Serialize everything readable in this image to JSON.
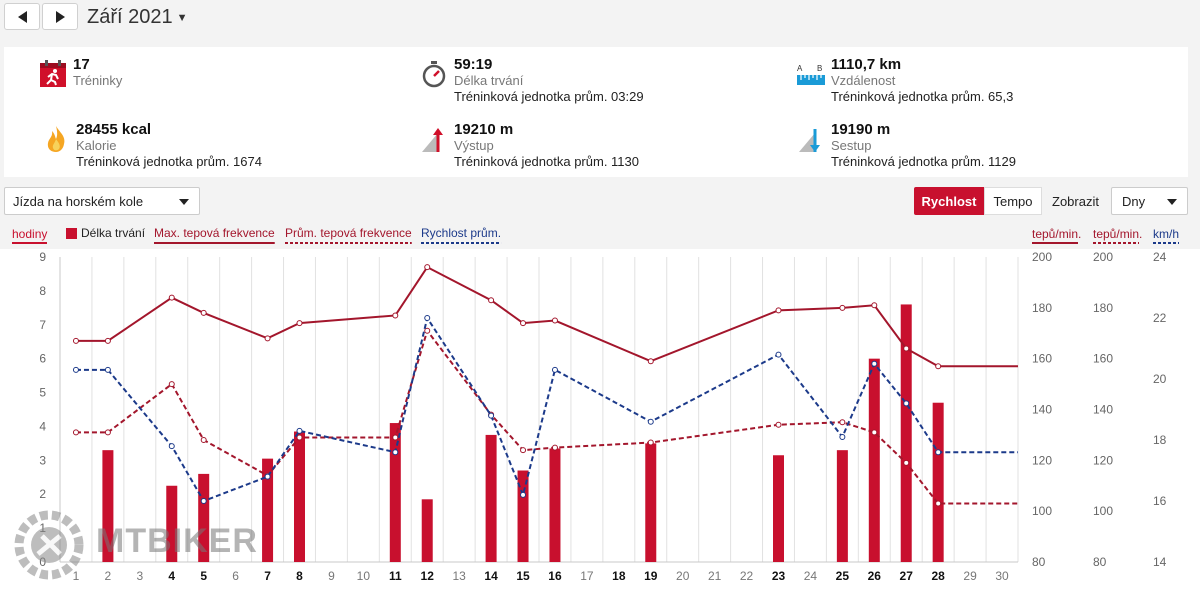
{
  "header": {
    "month_title": "Září 2021"
  },
  "stats": [
    {
      "id": "trainings",
      "value": "17",
      "label": "Tréninky",
      "avg": ""
    },
    {
      "id": "duration",
      "value": "59:19",
      "label": "Délka trvání",
      "avg": "Tréninková jednotka prům. 03:29"
    },
    {
      "id": "distance",
      "value": "1110,7 km",
      "label": "Vzdálenost",
      "avg": "Tréninková jednotka prům. 65,3"
    },
    {
      "id": "calories",
      "value": "28455 kcal",
      "label": "Kalorie",
      "avg": "Tréninková jednotka prům. 1674"
    },
    {
      "id": "ascent",
      "value": "19210 m",
      "label": "Výstup",
      "avg": "Tréninková jednotka prům. 1130"
    },
    {
      "id": "descent",
      "value": "19190 m",
      "label": "Sestup",
      "avg": "Tréninková jednotka prům. 1129"
    }
  ],
  "controls": {
    "activity": "Jízda na horském kole",
    "toggle_active": "Rychlost",
    "toggle_inactive": "Tempo",
    "show_label": "Zobrazit",
    "view": "Dny"
  },
  "watermark": "MTBIKER",
  "colors": {
    "accent": "#c8102e",
    "dark_red": "#a3162c",
    "blue": "#1c3a8a"
  },
  "chart_data": {
    "type": "bar+line",
    "categories": [
      "1",
      "2",
      "3",
      "4",
      "5",
      "6",
      "7",
      "8",
      "9",
      "10",
      "11",
      "12",
      "13",
      "14",
      "15",
      "16",
      "17",
      "18",
      "19",
      "20",
      "21",
      "22",
      "23",
      "24",
      "25",
      "26",
      "27",
      "28",
      "29",
      "30"
    ],
    "bold_days": [
      "4",
      "5",
      "7",
      "8",
      "11",
      "12",
      "14",
      "15",
      "16",
      "18",
      "19",
      "23",
      "25",
      "26",
      "27",
      "28"
    ],
    "left_axis": {
      "label": "hodiny",
      "range": [
        0,
        9
      ],
      "ticks": [
        "0",
        "1",
        "2",
        "3",
        "4",
        "5",
        "6",
        "7",
        "8",
        "9"
      ]
    },
    "right_axes": [
      {
        "label": "tepů/min.",
        "range": [
          80,
          200
        ],
        "ticks": [
          "80",
          "100",
          "120",
          "140",
          "160",
          "180",
          "200"
        ]
      },
      {
        "label": "tepů/min.",
        "range": [
          80,
          200
        ],
        "ticks": [
          "80",
          "100",
          "120",
          "140",
          "160",
          "180",
          "200"
        ]
      },
      {
        "label": "km/h",
        "range": [
          14,
          24
        ],
        "ticks": [
          "14",
          "16",
          "18",
          "20",
          "22",
          "24"
        ]
      }
    ],
    "legend": [
      "Délka trvání",
      "Max. tepová frekvence",
      "Prům. tepová frekvence",
      "Rychlost prům."
    ],
    "series": [
      {
        "name": "Délka trvání",
        "type": "bar",
        "axis": 0,
        "points": [
          [
            2,
            3.3
          ],
          [
            4,
            2.25
          ],
          [
            5,
            2.6
          ],
          [
            7,
            3.05
          ],
          [
            8,
            3.85
          ],
          [
            11,
            4.1
          ],
          [
            12,
            1.85
          ],
          [
            14,
            3.75
          ],
          [
            15,
            2.7
          ],
          [
            16,
            3.35
          ],
          [
            19,
            3.5
          ],
          [
            23,
            3.15
          ],
          [
            25,
            3.3
          ],
          [
            26,
            6.0
          ],
          [
            27,
            7.6
          ],
          [
            28,
            4.7
          ]
        ]
      },
      {
        "name": "Max. tepová frekvence",
        "type": "line",
        "axis": 1,
        "points": [
          [
            1,
            167
          ],
          [
            2,
            167
          ],
          [
            4,
            184
          ],
          [
            5,
            178
          ],
          [
            7,
            168
          ],
          [
            8,
            174
          ],
          [
            11,
            177
          ],
          [
            12,
            196
          ],
          [
            14,
            183
          ],
          [
            15,
            174
          ],
          [
            16,
            175
          ],
          [
            19,
            159
          ],
          [
            23,
            179
          ],
          [
            25,
            180
          ],
          [
            26,
            181
          ],
          [
            27,
            164
          ],
          [
            28,
            157
          ],
          [
            31,
            157
          ]
        ]
      },
      {
        "name": "Prům. tepová frekvence",
        "type": "line",
        "axis": 1,
        "points": [
          [
            1,
            131
          ],
          [
            2,
            131
          ],
          [
            4,
            150
          ],
          [
            5,
            128
          ],
          [
            7,
            114
          ],
          [
            8,
            129
          ],
          [
            11,
            129
          ],
          [
            12,
            171
          ],
          [
            14,
            138
          ],
          [
            15,
            124
          ],
          [
            16,
            125
          ],
          [
            19,
            127
          ],
          [
            23,
            134
          ],
          [
            25,
            135
          ],
          [
            26,
            131
          ],
          [
            27,
            119
          ],
          [
            28,
            103
          ],
          [
            31,
            103
          ]
        ]
      },
      {
        "name": "Rychlost prům.",
        "type": "line",
        "axis": 2,
        "points": [
          [
            1,
            20.3
          ],
          [
            2,
            20.3
          ],
          [
            4,
            17.8
          ],
          [
            5,
            16.0
          ],
          [
            7,
            16.8
          ],
          [
            8,
            18.3
          ],
          [
            11,
            17.6
          ],
          [
            12,
            22.0
          ],
          [
            14,
            18.8
          ],
          [
            15,
            16.2
          ],
          [
            16,
            20.3
          ],
          [
            19,
            18.6
          ],
          [
            23,
            20.8
          ],
          [
            25,
            18.1
          ],
          [
            26,
            20.5
          ],
          [
            27,
            19.2
          ],
          [
            28,
            17.6
          ],
          [
            31,
            17.6
          ]
        ]
      }
    ]
  }
}
